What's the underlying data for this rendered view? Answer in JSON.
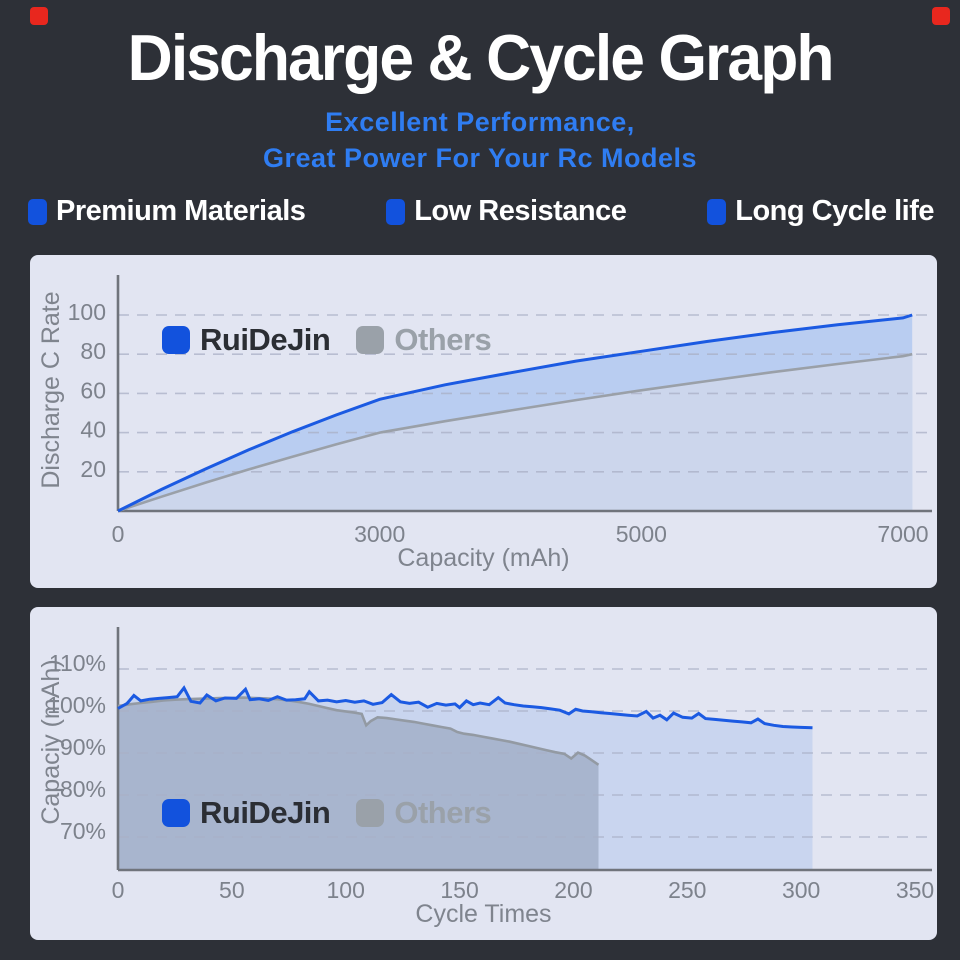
{
  "header": {
    "title": "Discharge & Cycle Graph",
    "subtitle_line1": "Excellent Performance,",
    "subtitle_line2": "Great Power For Your Rc Models"
  },
  "features": [
    "Premium Materials",
    "Low Resistance",
    "Long Cycle life"
  ],
  "colors": {
    "page_bg": "#2d3037",
    "corner_red": "#e8271e",
    "subtitle_blue": "#2f7df2",
    "bullet_blue": "#1252dd",
    "panel_bg": "#e2e5f2",
    "axis_line": "#70747c",
    "grid_line": "#aab0c6",
    "tick_text": "#7d828c",
    "legend_dark_text": "#2b2e34",
    "legend_gray_text": "#9aa1a9"
  },
  "chart_data": [
    {
      "type": "area",
      "name": "discharge-chart",
      "xlabel": "Capacity (mAh)",
      "ylabel": "Discharge C Rate",
      "x_ticks": [
        0,
        3000,
        5000,
        7000
      ],
      "x_tick_labels": [
        "0",
        "3000",
        "5000",
        "7000"
      ],
      "y_ticks": [
        20,
        40,
        60,
        80,
        100
      ],
      "y_tick_labels": [
        "20",
        "40",
        "60",
        "80",
        "100"
      ],
      "ylim": [
        0,
        112
      ],
      "grid": "dashed",
      "legend_position": "top-left-inside",
      "legend": [
        {
          "name": "RuiDeJin",
          "color": "#1252dd",
          "text_color": "#2b2e34"
        },
        {
          "name": "Others",
          "color": "#9aa1a9",
          "text_color": "#9aa1a9"
        }
      ],
      "series": [
        {
          "name": "Others",
          "line_color": "#9aa0a8",
          "fill_color": "#ccd6ec",
          "x": [
            0,
            500,
            1000,
            1500,
            2000,
            2500,
            3000,
            3500,
            4000,
            4500,
            5000,
            5500,
            6000,
            6500,
            7000,
            7070
          ],
          "values": [
            0,
            7.3,
            14.4,
            21.2,
            27.7,
            34,
            40,
            45.8,
            51.3,
            56.6,
            61.6,
            66.3,
            70.8,
            75,
            79,
            80
          ]
        },
        {
          "name": "RuiDeJin",
          "line_color": "#1b5ae2",
          "fill_color": "#b9cdf1",
          "x": [
            0,
            500,
            1000,
            1500,
            2000,
            2500,
            3000,
            3500,
            4000,
            4500,
            5000,
            5500,
            6000,
            6500,
            7000,
            7070
          ],
          "values": [
            0,
            11,
            21.4,
            31.2,
            40.4,
            49,
            57,
            64.4,
            70.5,
            76.5,
            81.5,
            86.5,
            91,
            95,
            98.5,
            100
          ]
        }
      ]
    },
    {
      "type": "line-area",
      "name": "cycle-chart",
      "xlabel": "Cycle Times",
      "ylabel": "Capaciy (mAh)",
      "x_ticks": [
        0,
        50,
        100,
        150,
        200,
        250,
        300,
        350
      ],
      "x_tick_labels": [
        "0",
        "50",
        "100",
        "150",
        "200",
        "250",
        "300",
        "350"
      ],
      "y_ticks": [
        70,
        80,
        90,
        100,
        110
      ],
      "y_tick_labels": [
        "70%",
        "80%",
        "90%",
        "100%",
        "110%"
      ],
      "ylim": [
        62,
        112
      ],
      "grid": "dashed",
      "legend_position": "bottom-left-inside",
      "legend": [
        {
          "name": "RuiDeJin",
          "color": "#1252dd",
          "text_color": "#2b2e34"
        },
        {
          "name": "Others",
          "color": "#9aa1a9",
          "text_color": "#9aa1a9"
        }
      ],
      "series": [
        {
          "name": "RuiDeJin",
          "line_color": "#1b5ae2",
          "fill_color": "#c9d5ef",
          "x": [
            0,
            4,
            7,
            10,
            14,
            18,
            22,
            26,
            29,
            32,
            36,
            39,
            43,
            47,
            52,
            56,
            58,
            62,
            66,
            70,
            74,
            78,
            82,
            84,
            88,
            92,
            96,
            100,
            104,
            108,
            112,
            116,
            120,
            124,
            128,
            132,
            136,
            140,
            144,
            148,
            150,
            153,
            156,
            159,
            163,
            167,
            170,
            174,
            178,
            182,
            186,
            190,
            194,
            198,
            201,
            204,
            208,
            212,
            216,
            220,
            224,
            228,
            232,
            235,
            238,
            241,
            244,
            248,
            252,
            255,
            258,
            262,
            266,
            270,
            274,
            278,
            281,
            284,
            288,
            292,
            296,
            300,
            305
          ],
          "values": [
            100.6,
            101.8,
            103.7,
            102.4,
            102.8,
            103.0,
            103.2,
            103.4,
            105.5,
            102.3,
            101.9,
            103.8,
            102.4,
            103.1,
            103.0,
            105.2,
            102.7,
            102.9,
            102.5,
            103.4,
            102.6,
            102.7,
            102.9,
            104.6,
            102.4,
            102.6,
            102.2,
            102.5,
            102.1,
            102.4,
            101.6,
            102.0,
            103.9,
            102.2,
            101.8,
            102.1,
            100.9,
            101.8,
            101.4,
            101.7,
            100.8,
            102.4,
            101.5,
            101.9,
            101.5,
            103.2,
            101.9,
            101.5,
            101.2,
            101.0,
            100.8,
            100.5,
            100.2,
            99.3,
            100.4,
            100.0,
            99.8,
            99.6,
            99.4,
            99.2,
            99.0,
            98.8,
            99.9,
            98.3,
            99.0,
            97.9,
            99.5,
            98.5,
            98.3,
            99.4,
            98.2,
            98.0,
            97.8,
            97.6,
            97.4,
            97.2,
            98.1,
            97.0,
            96.6,
            96.3,
            96.2,
            96.1,
            96.0
          ]
        },
        {
          "name": "Others",
          "line_color": "#939aa3",
          "fill_color": "rgba(120,132,158,0.40)",
          "x": [
            0,
            5,
            10,
            15,
            20,
            25,
            30,
            35,
            40,
            45,
            50,
            55,
            60,
            65,
            70,
            75,
            80,
            84,
            88,
            92,
            96,
            100,
            104,
            107,
            109,
            111,
            114,
            118,
            122,
            126,
            130,
            134,
            138,
            142,
            146,
            149,
            152,
            156,
            160,
            164,
            168,
            172,
            176,
            180,
            184,
            188,
            192,
            196,
            199,
            202,
            205,
            208,
            211
          ],
          "values": [
            101.2,
            101.6,
            101.9,
            102.2,
            102.5,
            102.7,
            102.8,
            102.9,
            103.0,
            103.1,
            103.1,
            103.2,
            103.1,
            103.0,
            102.8,
            102.5,
            102.1,
            101.7,
            101.2,
            100.7,
            100.2,
            99.9,
            99.6,
            99.3,
            96.6,
            97.6,
            98.5,
            98.3,
            98.0,
            97.7,
            97.4,
            97.0,
            96.6,
            96.2,
            95.8,
            95.0,
            94.6,
            94.3,
            93.9,
            93.5,
            93.1,
            92.7,
            92.2,
            91.7,
            91.2,
            90.7,
            90.2,
            89.8,
            88.7,
            90.1,
            89.4,
            88.3,
            87.2
          ]
        }
      ]
    }
  ]
}
